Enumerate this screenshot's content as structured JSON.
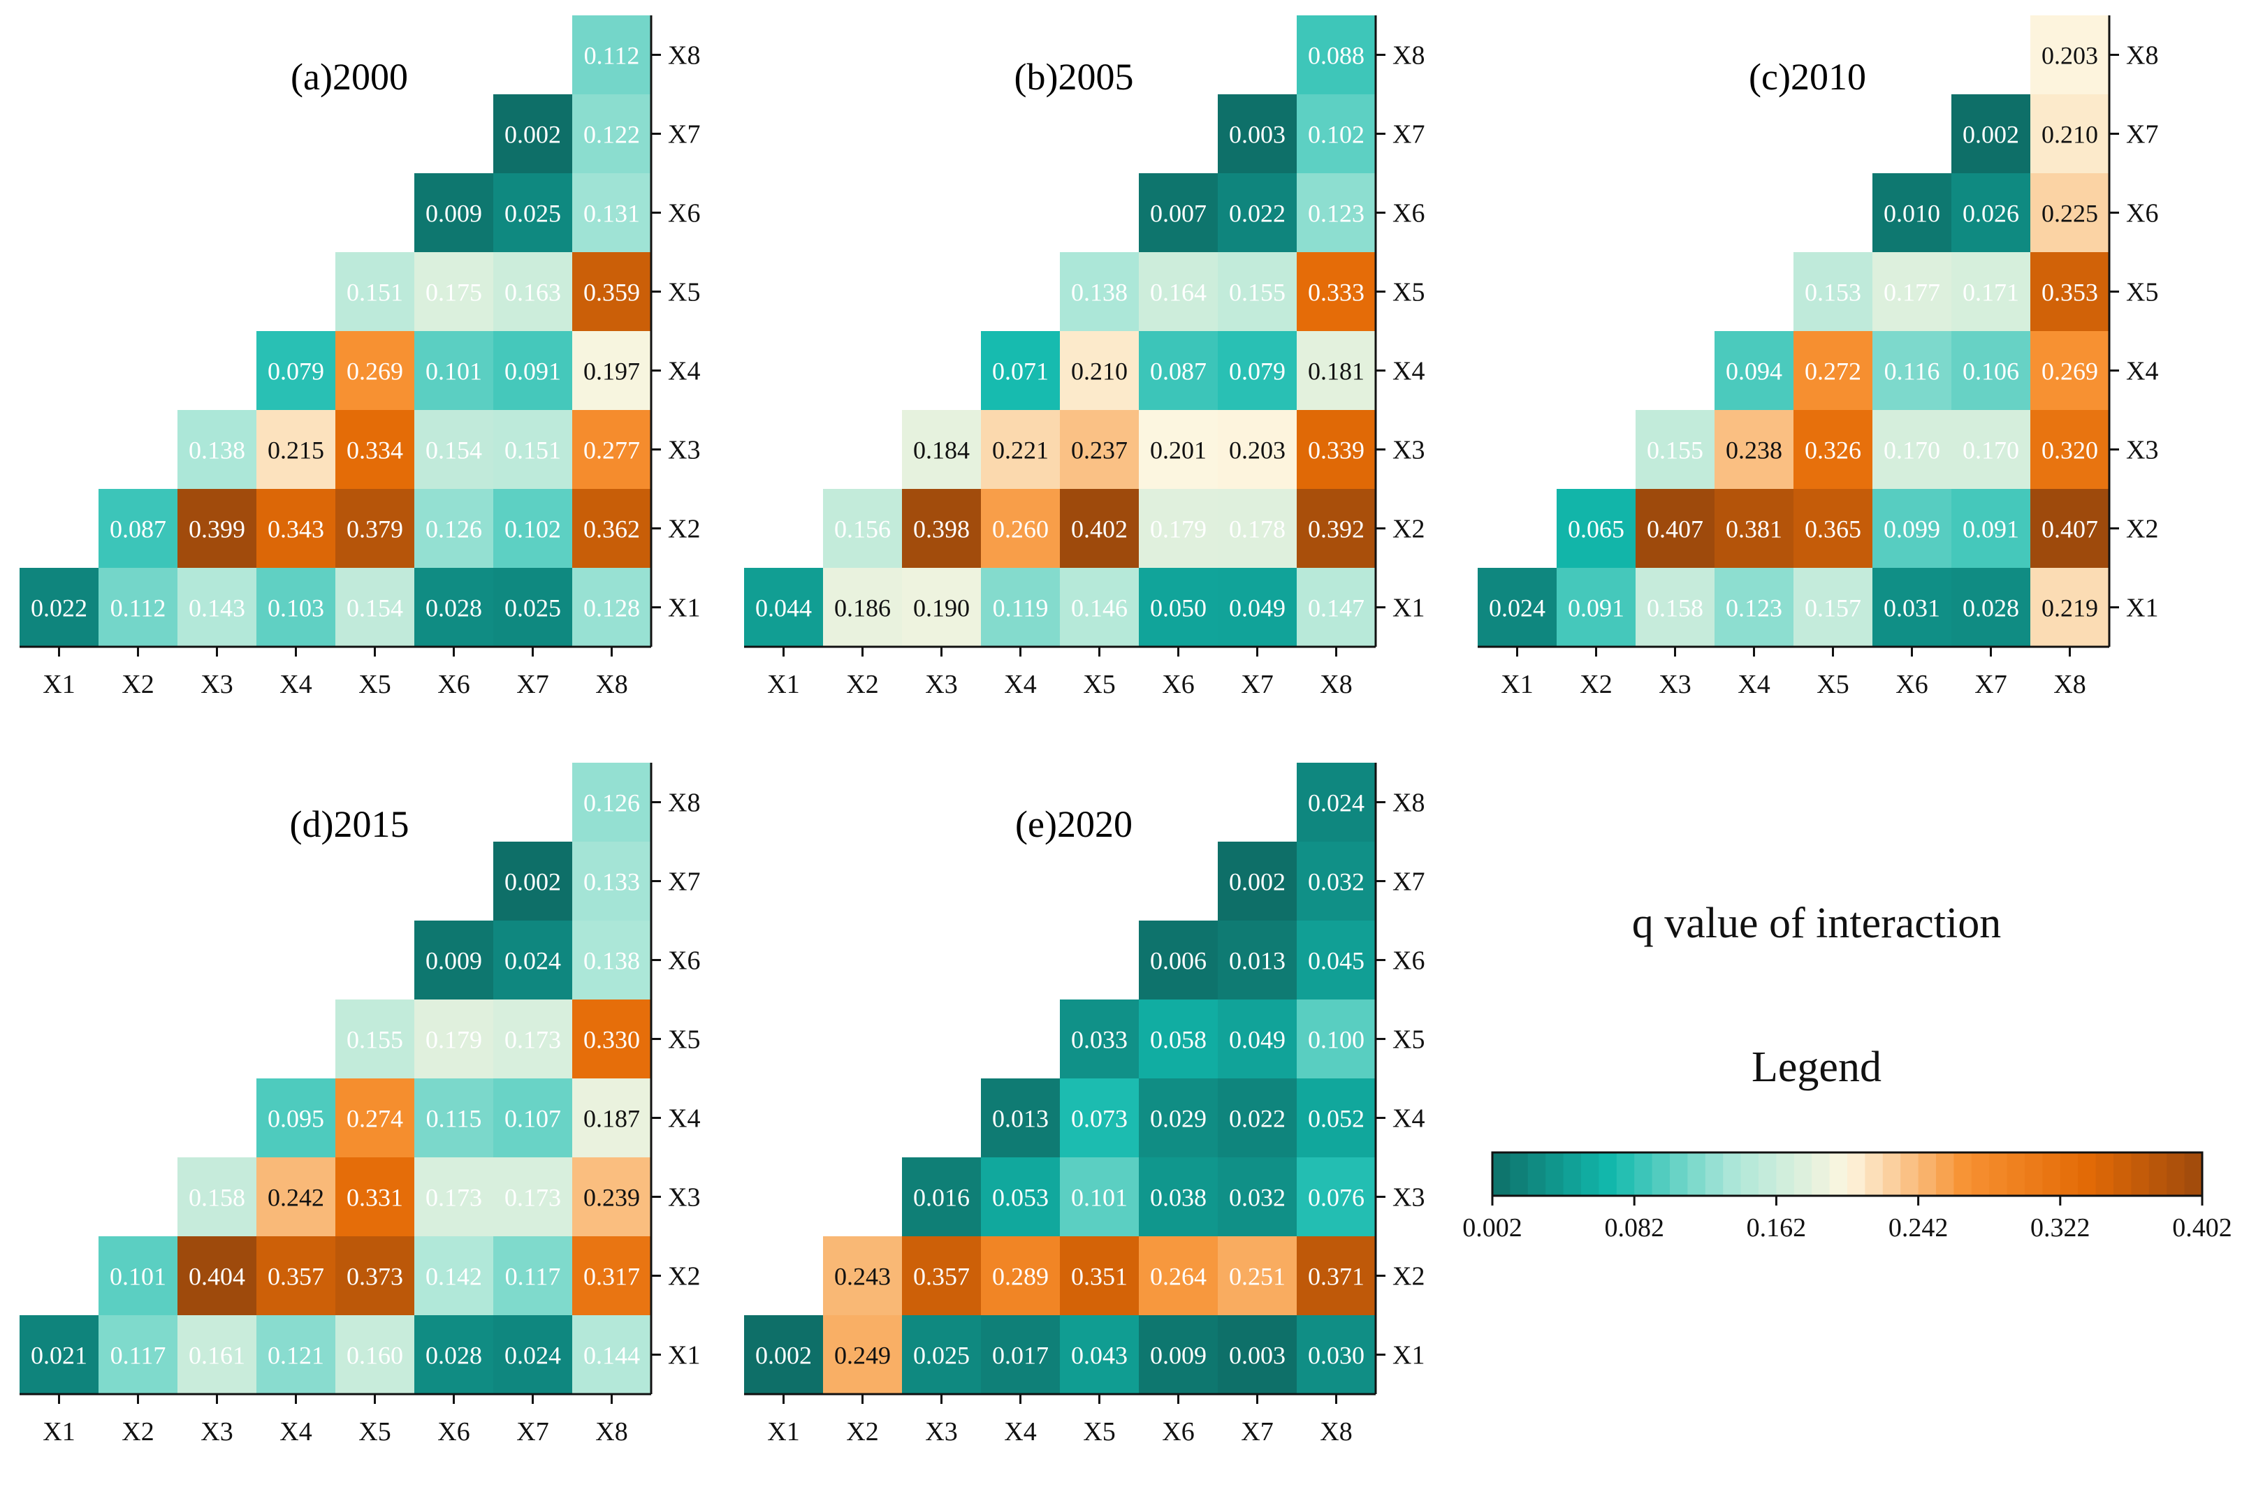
{
  "legend": {
    "heading": "q value of interaction",
    "title": "Legend",
    "min": 0.002,
    "max": 0.402,
    "ticks": [
      "0.002",
      "0.082",
      "0.162",
      "0.242",
      "0.322",
      "0.402"
    ],
    "color_stops": [
      "#0e6f68",
      "#12b9ad",
      "#a9e6d8",
      "#fdf6e0",
      "#f79132",
      "#e46b06",
      "#9e4a0c"
    ]
  },
  "chart_data": [
    {
      "type": "heatmap",
      "title": "(a)2000",
      "x_labels": [
        "X1",
        "X2",
        "X3",
        "X4",
        "X5",
        "X6",
        "X7",
        "X8"
      ],
      "y_labels": [
        "X1",
        "X2",
        "X3",
        "X4",
        "X5",
        "X6",
        "X7",
        "X8"
      ],
      "rows": [
        [
          "0.022",
          "0.112",
          "0.143",
          "0.103",
          "0.154",
          "0.028",
          "0.025",
          "0.128"
        ],
        [
          "0.087",
          "0.399",
          "0.343",
          "0.379",
          "0.126",
          "0.102",
          "0.362"
        ],
        [
          "0.138",
          "0.215",
          "0.334",
          "0.154",
          "0.151",
          "0.277"
        ],
        [
          "0.079",
          "0.269",
          "0.101",
          "0.091",
          "0.197"
        ],
        [
          "0.151",
          "0.175",
          "0.163",
          "0.359"
        ],
        [
          "0.009",
          "0.025",
          "0.131"
        ],
        [
          "0.002",
          "0.122"
        ],
        [
          "0.112"
        ]
      ]
    },
    {
      "type": "heatmap",
      "title": "(b)2005",
      "x_labels": [
        "X1",
        "X2",
        "X3",
        "X4",
        "X5",
        "X6",
        "X7",
        "X8"
      ],
      "y_labels": [
        "X1",
        "X2",
        "X3",
        "X4",
        "X5",
        "X6",
        "X7",
        "X8"
      ],
      "rows": [
        [
          "0.044",
          "0.186",
          "0.190",
          "0.119",
          "0.146",
          "0.050",
          "0.049",
          "0.147"
        ],
        [
          "0.156",
          "0.398",
          "0.260",
          "0.402",
          "0.179",
          "0.178",
          "0.392"
        ],
        [
          "0.184",
          "0.221",
          "0.237",
          "0.201",
          "0.203",
          "0.339"
        ],
        [
          "0.071",
          "0.210",
          "0.087",
          "0.079",
          "0.181"
        ],
        [
          "0.138",
          "0.164",
          "0.155",
          "0.333"
        ],
        [
          "0.007",
          "0.022",
          "0.123"
        ],
        [
          "0.003",
          "0.102"
        ],
        [
          "0.088"
        ]
      ]
    },
    {
      "type": "heatmap",
      "title": "(c)2010",
      "x_labels": [
        "X1",
        "X2",
        "X3",
        "X4",
        "X5",
        "X6",
        "X7",
        "X8"
      ],
      "y_labels": [
        "X1",
        "X2",
        "X3",
        "X4",
        "X5",
        "X6",
        "X7",
        "X8"
      ],
      "rows": [
        [
          "0.024",
          "0.091",
          "0.158",
          "0.123",
          "0.157",
          "0.031",
          "0.028",
          "0.219"
        ],
        [
          "0.065",
          "0.407",
          "0.381",
          "0.365",
          "0.099",
          "0.091",
          "0.407"
        ],
        [
          "0.155",
          "0.238",
          "0.326",
          "0.170",
          "0.170",
          "0.320"
        ],
        [
          "0.094",
          "0.272",
          "0.116",
          "0.106",
          "0.269"
        ],
        [
          "0.153",
          "0.177",
          "0.171",
          "0.353"
        ],
        [
          "0.010",
          "0.026",
          "0.225"
        ],
        [
          "0.002",
          "0.210"
        ],
        [
          "0.203"
        ]
      ]
    },
    {
      "type": "heatmap",
      "title": "(d)2015",
      "x_labels": [
        "X1",
        "X2",
        "X3",
        "X4",
        "X5",
        "X6",
        "X7",
        "X8"
      ],
      "y_labels": [
        "X1",
        "X2",
        "X3",
        "X4",
        "X5",
        "X6",
        "X7",
        "X8"
      ],
      "rows": [
        [
          "0.021",
          "0.117",
          "0.161",
          "0.121",
          "0.160",
          "0.028",
          "0.024",
          "0.144"
        ],
        [
          "0.101",
          "0.404",
          "0.357",
          "0.373",
          "0.142",
          "0.117",
          "0.317"
        ],
        [
          "0.158",
          "0.242",
          "0.331",
          "0.173",
          "0.173",
          "0.239"
        ],
        [
          "0.095",
          "0.274",
          "0.115",
          "0.107",
          "0.187"
        ],
        [
          "0.155",
          "0.179",
          "0.173",
          "0.330"
        ],
        [
          "0.009",
          "0.024",
          "0.138"
        ],
        [
          "0.002",
          "0.133"
        ],
        [
          "0.126"
        ]
      ]
    },
    {
      "type": "heatmap",
      "title": "(e)2020",
      "x_labels": [
        "X1",
        "X2",
        "X3",
        "X4",
        "X5",
        "X6",
        "X7",
        "X8"
      ],
      "y_labels": [
        "X1",
        "X2",
        "X3",
        "X4",
        "X5",
        "X6",
        "X7",
        "X8"
      ],
      "rows": [
        [
          "0.002",
          "0.249",
          "0.025",
          "0.017",
          "0.043",
          "0.009",
          "0.003",
          "0.030"
        ],
        [
          "0.243",
          "0.357",
          "0.289",
          "0.351",
          "0.264",
          "0.251",
          "0.371"
        ],
        [
          "0.016",
          "0.053",
          "0.101",
          "0.038",
          "0.032",
          "0.076"
        ],
        [
          "0.013",
          "0.073",
          "0.029",
          "0.022",
          "0.052"
        ],
        [
          "0.033",
          "0.058",
          "0.049",
          "0.100"
        ],
        [
          "0.006",
          "0.013",
          "0.045"
        ],
        [
          "0.002",
          "0.032"
        ],
        [
          "0.024"
        ]
      ]
    }
  ]
}
